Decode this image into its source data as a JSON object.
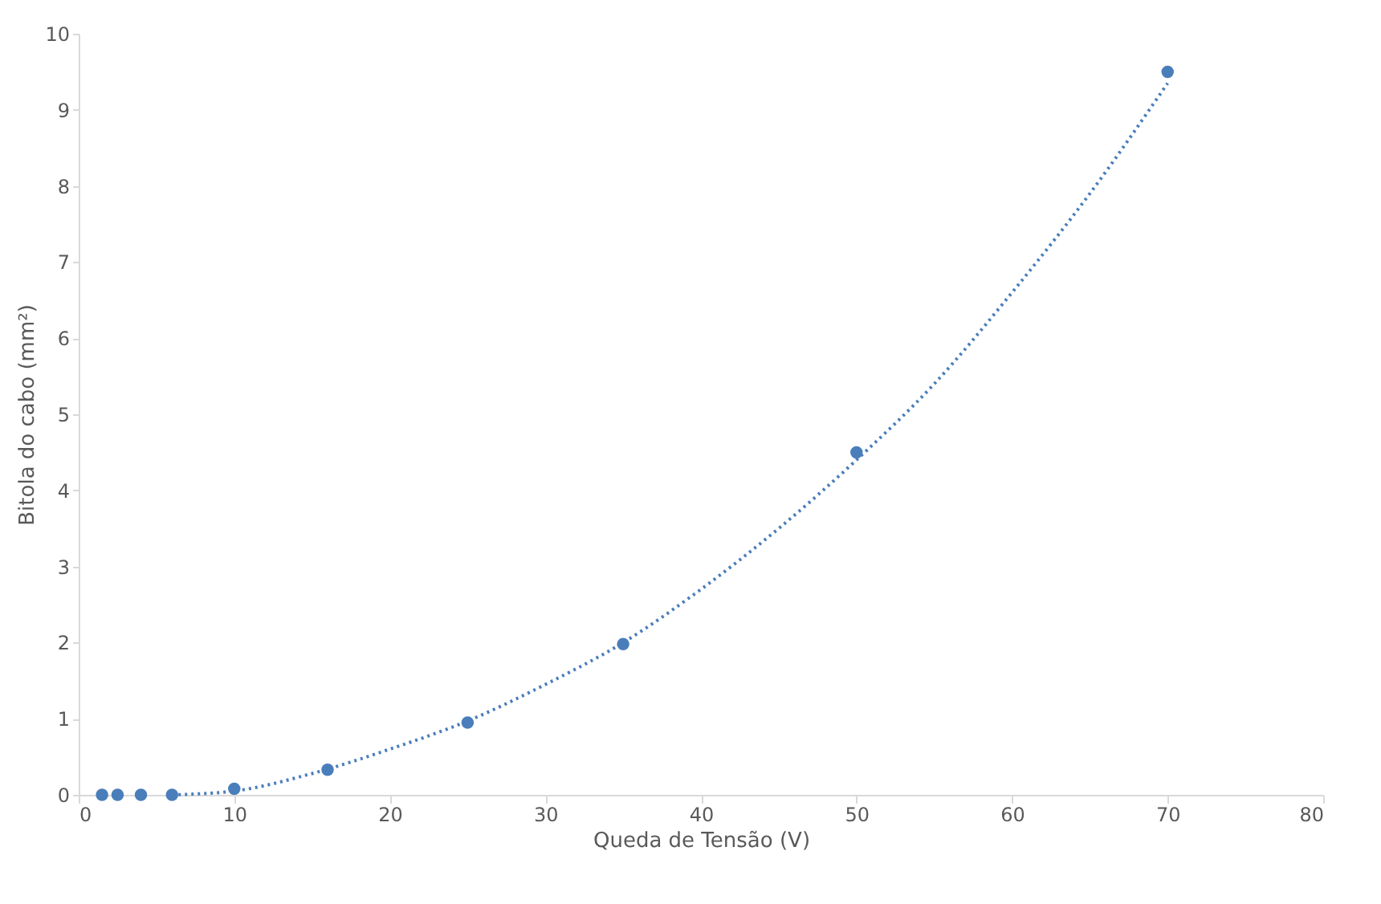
{
  "chart_data": {
    "type": "scatter",
    "xlabel": "Queda de Tensão (V)",
    "ylabel": "Bitola do cabo (mm²)",
    "xlim": [
      0,
      80
    ],
    "xticks": [
      0,
      10,
      20,
      30,
      40,
      50,
      60,
      70,
      80
    ],
    "ylim": [
      0,
      10
    ],
    "yticks": [
      0,
      1,
      2,
      3,
      4,
      5,
      6,
      7,
      8,
      9,
      10
    ],
    "grid": false,
    "marker": "circle",
    "series": [
      {
        "color": "#4a7ebb",
        "x": [
          1.5,
          2.5,
          4,
          6,
          10,
          16,
          25,
          35,
          50,
          70
        ],
        "values": [
          0,
          0,
          0,
          0,
          0.08,
          0.33,
          0.95,
          1.98,
          4.5,
          9.5
        ]
      },
      {
        "type": "line",
        "marker": "none",
        "line_style": "dotted",
        "color": "#4a7ebb",
        "x": [
          6,
          10,
          15,
          20,
          25,
          30,
          35,
          40,
          45,
          50,
          55,
          60,
          65,
          70
        ],
        "values": [
          0,
          0.05,
          0.28,
          0.6,
          0.97,
          1.45,
          2.0,
          2.7,
          3.5,
          4.4,
          5.4,
          6.6,
          7.9,
          9.35
        ]
      }
    ]
  }
}
